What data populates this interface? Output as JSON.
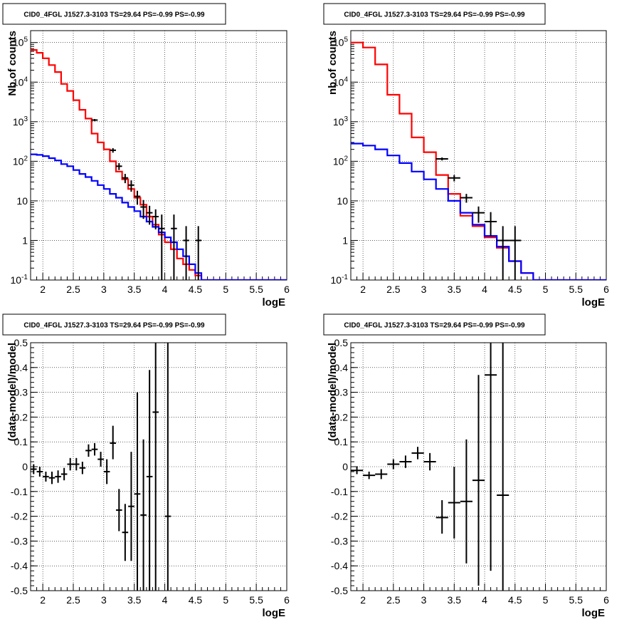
{
  "colors": {
    "data": "#000000",
    "total_model": "#ff0000",
    "component_model": "#0000ff",
    "grid": "#000000",
    "background": "#ffffff"
  },
  "panels": [
    {
      "title": "CID0_4FGL J1527.3-3103 TS=29.64 PS=-0.99 PS=-0.99"
    },
    {
      "title": "CID0_4FGL J1527.3-3103 TS=29.64 PS=-0.99 PS=-0.99"
    },
    {
      "title": "CID0_4FGL J1527.3-3103 TS=29.64 PS=-0.99 PS=-0.99"
    },
    {
      "title": "CID0_4FGL J1527.3-3103 TS=29.64 PS=-0.99 PS=-0.99"
    }
  ],
  "chart_data": [
    {
      "type": "line",
      "title": "CID0_4FGL J1527.3-3103 TS=29.64 PS=-0.99 PS=-0.99",
      "xlabel": "logE",
      "ylabel": "Nb of counts",
      "xlim": [
        1.8,
        6.0
      ],
      "ylim": [
        0.1,
        200000
      ],
      "yscale": "log",
      "grid": true,
      "xticks": [
        "2",
        "2.5",
        "3",
        "3.5",
        "4",
        "4.5",
        "5",
        "5.5",
        "6"
      ],
      "yticks": [
        "10^-1",
        "1",
        "10",
        "10^2",
        "10^3",
        "10^4",
        "10^5"
      ],
      "binwidth": 0.1,
      "series": [
        {
          "kind": "step",
          "color": "#ff0000",
          "x": [
            1.85,
            1.95,
            2.05,
            2.15,
            2.25,
            2.35,
            2.45,
            2.55,
            2.65,
            2.75,
            2.85,
            2.95,
            3.05,
            3.15,
            3.25,
            3.35,
            3.45,
            3.55,
            3.65,
            3.75,
            3.85,
            3.95,
            4.05,
            4.15,
            4.25,
            4.35,
            4.45,
            4.55,
            4.65,
            4.75,
            4.85,
            4.95,
            5.05,
            5.15,
            5.25,
            5.35,
            5.45,
            5.55,
            5.65,
            5.75,
            5.85,
            5.95
          ],
          "y": [
            65000,
            55000,
            40000,
            27000,
            18000,
            9000,
            6000,
            3500,
            2000,
            1200,
            500,
            300,
            200,
            100,
            55,
            35,
            20,
            12,
            8,
            4,
            2.5,
            1.4,
            0.9,
            0.6,
            0.35,
            0.25,
            0.18,
            0.13,
            0.1,
            0.1,
            0.1,
            0.1,
            0.1,
            0.1,
            0.1,
            0.1,
            0.1,
            0.1,
            0.1,
            0.1,
            0.1,
            0.1
          ]
        },
        {
          "kind": "step",
          "color": "#0000ff",
          "x": [
            1.85,
            1.95,
            2.05,
            2.15,
            2.25,
            2.35,
            2.45,
            2.55,
            2.65,
            2.75,
            2.85,
            2.95,
            3.05,
            3.15,
            3.25,
            3.35,
            3.45,
            3.55,
            3.65,
            3.75,
            3.85,
            3.95,
            4.05,
            4.15,
            4.25,
            4.35,
            4.45,
            4.55,
            4.65,
            4.75,
            4.85,
            4.95,
            5.05,
            5.15,
            5.25,
            5.35,
            5.45,
            5.55,
            5.65,
            5.75,
            5.85,
            5.95
          ],
          "y": [
            150,
            145,
            135,
            120,
            105,
            85,
            75,
            60,
            48,
            40,
            32,
            25,
            20,
            15,
            12,
            9,
            7,
            5.5,
            4,
            3,
            2.2,
            1.6,
            1.2,
            0.9,
            0.6,
            0.4,
            0.25,
            0.15,
            0.1,
            0.1,
            0.1,
            0.1,
            0.1,
            0.1,
            0.1,
            0.1,
            0.1,
            0.1,
            0.1,
            0.1,
            0.1,
            0.1
          ]
        },
        {
          "kind": "points",
          "color": "#000000",
          "x": [
            2.85,
            3.15,
            3.25,
            3.35,
            3.45,
            3.55,
            3.65,
            3.75,
            3.85,
            3.95,
            4.15,
            4.35,
            4.55
          ],
          "y": [
            1100,
            190,
            75,
            38,
            25,
            13,
            7,
            5,
            4,
            2,
            2,
            1,
            1
          ],
          "ylo": [
            1030,
            165,
            60,
            28,
            17,
            8,
            3.5,
            2.5,
            1.9,
            0.1,
            0.1,
            0.1,
            0.1
          ],
          "yhi": [
            1170,
            215,
            90,
            48,
            33,
            18,
            10.5,
            7.5,
            6.1,
            4.5,
            4.5,
            2.3,
            2.3
          ]
        }
      ]
    },
    {
      "type": "line",
      "title": "CID0_4FGL J1527.3-3103 TS=29.64 PS=-0.99 PS=-0.99",
      "xlabel": "logE",
      "ylabel": "nb of counts",
      "xlim": [
        1.8,
        6.0
      ],
      "ylim": [
        0.1,
        200000
      ],
      "yscale": "log",
      "grid": true,
      "xticks": [
        "2",
        "2.5",
        "3",
        "3.5",
        "4",
        "4.5",
        "5",
        "5.5",
        "6"
      ],
      "yticks": [
        "10^-1",
        "1",
        "10",
        "10^2",
        "10^3",
        "10^4",
        "10^5"
      ],
      "binwidth": 0.2,
      "series": [
        {
          "kind": "step",
          "color": "#ff0000",
          "x": [
            1.9,
            2.1,
            2.3,
            2.5,
            2.7,
            2.9,
            3.1,
            3.3,
            3.5,
            3.7,
            3.9,
            4.1,
            4.3,
            4.5,
            4.7,
            4.9,
            5.1,
            5.3,
            5.5,
            5.7,
            5.9
          ],
          "y": [
            100000,
            75000,
            28000,
            4800,
            1600,
            400,
            170,
            45,
            15,
            4.2,
            2.3,
            1.2,
            0.65,
            0.3,
            0.15,
            0.1,
            0.1,
            0.1,
            0.1,
            0.1,
            0.1
          ]
        },
        {
          "kind": "step",
          "color": "#0000ff",
          "x": [
            1.9,
            2.1,
            2.3,
            2.5,
            2.7,
            2.9,
            3.1,
            3.3,
            3.5,
            3.7,
            3.9,
            4.1,
            4.3,
            4.5,
            4.7,
            4.9,
            5.1,
            5.3,
            5.5,
            5.7,
            5.9
          ],
          "y": [
            280,
            250,
            200,
            140,
            90,
            55,
            35,
            20,
            10,
            5,
            2.5,
            1.3,
            0.7,
            0.3,
            0.15,
            0.1,
            0.1,
            0.1,
            0.1,
            0.1,
            0.1
          ]
        },
        {
          "kind": "points",
          "color": "#000000",
          "x": [
            3.3,
            3.5,
            3.7,
            3.9,
            4.1,
            4.3,
            4.5
          ],
          "y": [
            115,
            38,
            12,
            5,
            3,
            1,
            1
          ],
          "ylo": [
            105,
            31,
            9,
            2.8,
            1.3,
            0.1,
            0.1
          ],
          "yhi": [
            125,
            45,
            15,
            7.2,
            5.2,
            2.3,
            2.3
          ]
        }
      ]
    },
    {
      "type": "scatter",
      "title": "CID0_4FGL J1527.3-3103 TS=29.64 PS=-0.99 PS=-0.99",
      "xlabel": "logE",
      "ylabel": "(data-model)/model",
      "xlim": [
        1.8,
        6.0
      ],
      "ylim": [
        -0.5,
        0.5
      ],
      "grid": true,
      "xticks": [
        "2",
        "2.5",
        "3",
        "3.5",
        "4",
        "4.5",
        "5",
        "5.5",
        "6"
      ],
      "yticks": [
        "-0.5",
        "-0.4",
        "-0.3",
        "-0.2",
        "-0.1",
        "0",
        "0.1",
        "0.2",
        "0.3",
        "0.4",
        "0.5"
      ],
      "binwidth": 0.1,
      "series": [
        {
          "kind": "points",
          "color": "#000000",
          "x": [
            1.85,
            1.95,
            2.05,
            2.15,
            2.25,
            2.35,
            2.45,
            2.55,
            2.65,
            2.75,
            2.85,
            2.95,
            3.05,
            3.15,
            3.25,
            3.35,
            3.45,
            3.55,
            3.65,
            3.75,
            3.85,
            4.05
          ],
          "y": [
            -0.01,
            -0.02,
            -0.04,
            -0.045,
            -0.04,
            -0.03,
            0.01,
            0.01,
            -0.005,
            0.065,
            0.07,
            0.03,
            -0.02,
            0.095,
            -0.175,
            -0.265,
            -0.16,
            -0.11,
            -0.195,
            -0.04,
            0.22,
            -0.2
          ],
          "ylo": [
            -0.03,
            -0.04,
            -0.06,
            -0.07,
            -0.065,
            -0.055,
            -0.015,
            -0.015,
            -0.03,
            0.04,
            0.045,
            0.0,
            -0.07,
            0.03,
            -0.26,
            -0.38,
            -0.38,
            -0.5,
            -0.5,
            -0.5,
            -0.5,
            -0.5
          ],
          "yhi": [
            0.01,
            0.0,
            -0.02,
            -0.02,
            -0.015,
            -0.005,
            0.035,
            0.035,
            0.02,
            0.09,
            0.095,
            0.06,
            0.03,
            0.165,
            -0.09,
            -0.15,
            0.06,
            0.3,
            0.11,
            0.39,
            0.5,
            0.5
          ]
        }
      ]
    },
    {
      "type": "scatter",
      "title": "CID0_4FGL J1527.3-3103 TS=29.64 PS=-0.99 PS=-0.99",
      "xlabel": "logE",
      "ylabel": "(data-model)/model",
      "xlim": [
        1.8,
        6.0
      ],
      "ylim": [
        -0.5,
        0.5
      ],
      "grid": true,
      "xticks": [
        "2",
        "2.5",
        "3",
        "3.5",
        "4",
        "4.5",
        "5",
        "5.5",
        "6"
      ],
      "yticks": [
        "-0.5",
        "-0.4",
        "-0.3",
        "-0.2",
        "-0.1",
        "0",
        "0.1",
        "0.2",
        "0.3",
        "0.4",
        "0.5"
      ],
      "binwidth": 0.2,
      "series": [
        {
          "kind": "points",
          "color": "#000000",
          "x": [
            1.9,
            2.1,
            2.3,
            2.5,
            2.7,
            2.9,
            3.1,
            3.3,
            3.5,
            3.7,
            3.9,
            4.1,
            4.3
          ],
          "y": [
            -0.015,
            -0.035,
            -0.03,
            0.01,
            0.02,
            0.055,
            0.02,
            -0.205,
            -0.145,
            -0.14,
            -0.055,
            0.37,
            -0.115
          ],
          "ylo": [
            -0.03,
            -0.05,
            -0.05,
            -0.01,
            -0.005,
            0.03,
            -0.015,
            -0.27,
            -0.29,
            -0.39,
            -0.48,
            -0.42,
            -0.5
          ],
          "yhi": [
            0.0,
            -0.02,
            -0.01,
            0.03,
            0.045,
            0.08,
            0.055,
            -0.135,
            0.0,
            0.11,
            0.37,
            0.5,
            0.5
          ]
        }
      ]
    }
  ]
}
